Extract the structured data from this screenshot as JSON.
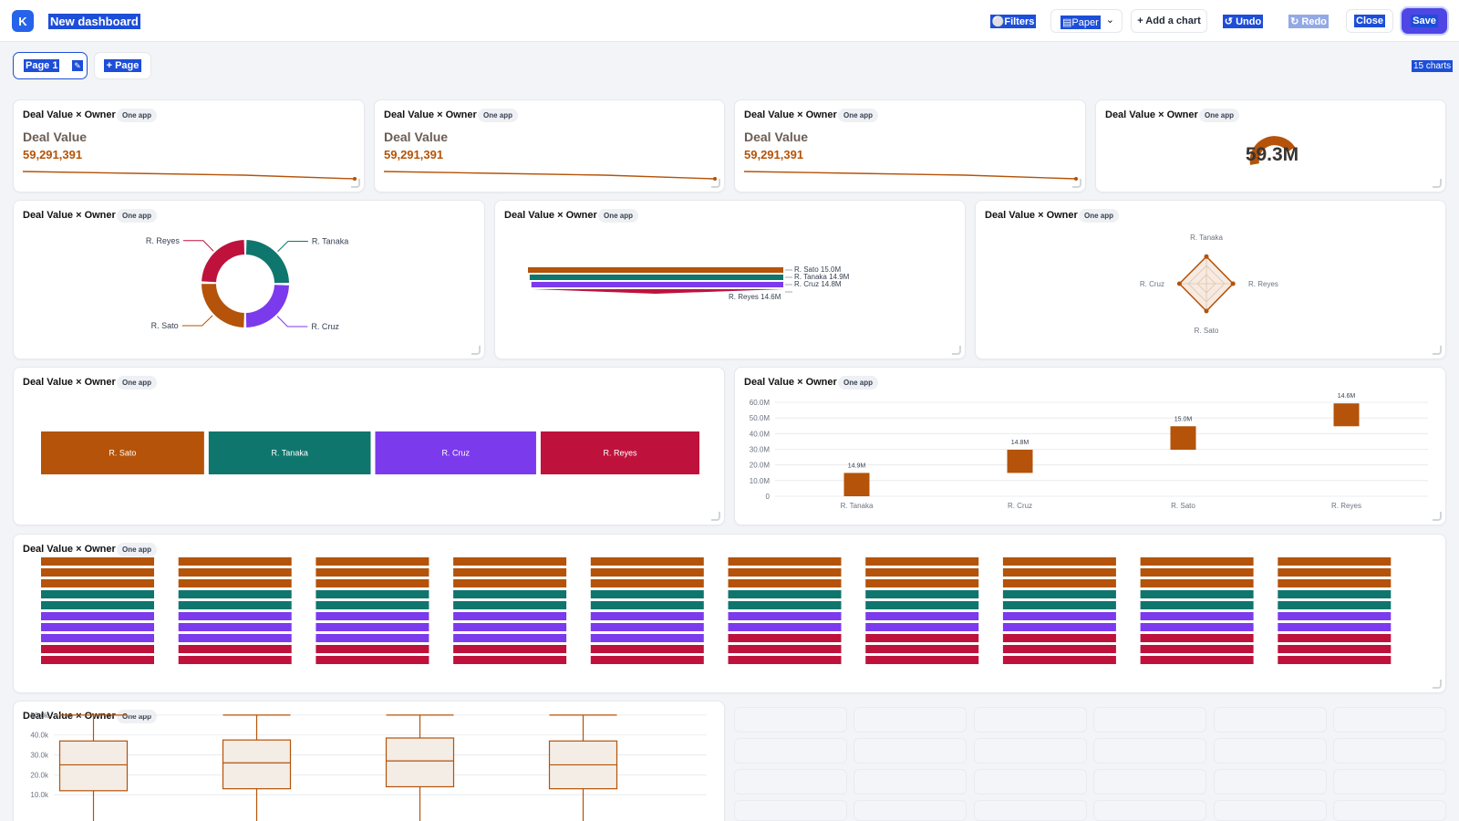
{
  "header": {
    "logo_letter": "K",
    "title": "New dashboard",
    "filters_label": "Filters",
    "theme_value": "Paper",
    "add_chart_label": "+ Add a chart",
    "undo_label": "Undo",
    "redo_label": "Redo",
    "close_label": "Close",
    "save_label": "Save"
  },
  "pages": {
    "tabs": [
      {
        "label": "Page 1"
      }
    ],
    "add_label": "+ Page",
    "chart_count": "15 charts"
  },
  "chart_title": "Deal Value × Owner",
  "badge": "One app",
  "colors": {
    "orange": "#b45309",
    "teal": "#0f766e",
    "purple": "#7c3aed",
    "crimson": "#be123c"
  },
  "chart_data": [
    {
      "type": "line",
      "kpi_label": "Deal Value",
      "kpi_value": "59,291,391",
      "values": [
        15.0,
        14.9,
        14.8,
        14.6
      ]
    },
    {
      "type": "line",
      "kpi_label": "Deal Value",
      "kpi_value": "59,291,391",
      "values": [
        15.0,
        14.9,
        14.8,
        14.6
      ]
    },
    {
      "type": "line",
      "kpi_label": "Deal Value",
      "kpi_value": "59,291,391",
      "values": [
        15.0,
        14.9,
        14.8,
        14.6
      ]
    },
    {
      "type": "gauge",
      "value_label": "59.3M"
    },
    {
      "type": "pie",
      "categories": [
        "R. Tanaka",
        "R. Cruz",
        "R. Sato",
        "R. Reyes"
      ],
      "values": [
        14.9,
        14.8,
        15.0,
        14.6
      ]
    },
    {
      "type": "bar",
      "categories": [
        "R. Sato",
        "R. Tanaka",
        "R. Cruz",
        "R. Reyes"
      ],
      "values": [
        15.0,
        14.9,
        14.8,
        14.6
      ],
      "value_labels": [
        "15.0M",
        "14.9M",
        "14.8M",
        "14.6M"
      ]
    },
    {
      "type": "radar",
      "categories": [
        "R. Tanaka",
        "R. Reyes",
        "R. Sato",
        "R. Cruz"
      ],
      "values": [
        14.9,
        14.6,
        15.0,
        14.8
      ]
    },
    {
      "type": "bar",
      "categories": [
        "R. Sato",
        "R. Tanaka",
        "R. Cruz",
        "R. Reyes"
      ],
      "values": [
        15.0,
        14.9,
        14.8,
        14.6
      ]
    },
    {
      "type": "bar",
      "categories": [
        "R. Tanaka",
        "R. Cruz",
        "R. Sato",
        "R. Reyes"
      ],
      "values": [
        14.9,
        14.8,
        15.0,
        14.6
      ],
      "value_labels": [
        "14.9M",
        "14.8M",
        "15.0M",
        "14.6M"
      ],
      "y_ticks": [
        "0",
        "10.0M",
        "20.0M",
        "30.0M",
        "40.0M",
        "50.0M",
        "60.0M"
      ],
      "ylim": [
        0,
        60
      ]
    },
    {
      "type": "bar",
      "groups": 10,
      "stacks": [
        [
          3,
          3,
          3,
          3,
          3,
          3,
          3,
          3,
          3,
          3
        ],
        [
          2,
          2,
          2,
          2,
          2,
          2,
          2,
          2,
          2,
          2
        ],
        [
          3,
          3,
          3,
          3,
          3,
          2,
          2,
          2,
          2,
          2
        ],
        [
          2,
          2,
          2,
          2,
          2,
          3,
          3,
          3,
          3,
          3
        ]
      ]
    },
    {
      "type": "box",
      "groups": 4,
      "y_ticks": [
        "10.0k",
        "20.0k",
        "30.0k",
        "40.0k",
        "50.0k"
      ],
      "ylim": [
        0,
        55
      ],
      "boxes": [
        {
          "max": 50,
          "q3": 37,
          "median": 25,
          "q1": 12
        },
        {
          "max": 50,
          "q3": 37.5,
          "median": 26,
          "q1": 13
        },
        {
          "max": 50,
          "q3": 38.5,
          "median": 27,
          "q1": 14
        },
        {
          "max": 50,
          "q3": 37,
          "median": 25,
          "q1": 13
        }
      ]
    }
  ]
}
